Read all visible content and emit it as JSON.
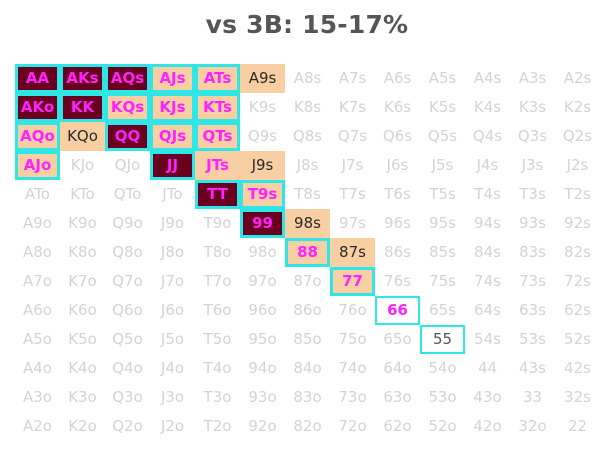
{
  "title": "vs 3B: 15-17%",
  "colors": {
    "raise_fill": "#6a0020",
    "raise_text": "#ff22ff",
    "call_fill": "#f7cfa2",
    "fold_text": "#d3d3d3",
    "highlight_outline": "#2ee6e6"
  },
  "rows": [
    [
      {
        "l": "AA",
        "s": "raise",
        "o": true
      },
      {
        "l": "AKs",
        "s": "raise",
        "o": true
      },
      {
        "l": "AQs",
        "s": "raise",
        "o": true
      },
      {
        "l": "AJs",
        "s": "raise-pink",
        "o": true
      },
      {
        "l": "ATs",
        "s": "raise-pink",
        "o": true
      },
      {
        "l": "A9s",
        "s": "call"
      },
      {
        "l": "A8s",
        "s": "fold"
      },
      {
        "l": "A7s",
        "s": "fold"
      },
      {
        "l": "A6s",
        "s": "fold"
      },
      {
        "l": "A5s",
        "s": "fold"
      },
      {
        "l": "A4s",
        "s": "fold"
      },
      {
        "l": "A3s",
        "s": "fold"
      },
      {
        "l": "A2s",
        "s": "fold"
      }
    ],
    [
      {
        "l": "AKo",
        "s": "raise",
        "o": true
      },
      {
        "l": "KK",
        "s": "raise",
        "o": true
      },
      {
        "l": "KQs",
        "s": "raise-pink",
        "o": true
      },
      {
        "l": "KJs",
        "s": "raise-pink",
        "o": true
      },
      {
        "l": "KTs",
        "s": "raise-pink",
        "o": true
      },
      {
        "l": "K9s",
        "s": "fold"
      },
      {
        "l": "K8s",
        "s": "fold"
      },
      {
        "l": "K7s",
        "s": "fold"
      },
      {
        "l": "K6s",
        "s": "fold"
      },
      {
        "l": "K5s",
        "s": "fold"
      },
      {
        "l": "K4s",
        "s": "fold"
      },
      {
        "l": "K3s",
        "s": "fold"
      },
      {
        "l": "K2s",
        "s": "fold"
      }
    ],
    [
      {
        "l": "AQo",
        "s": "raise-pink",
        "o": true
      },
      {
        "l": "KQo",
        "s": "call"
      },
      {
        "l": "QQ",
        "s": "raise",
        "o": true
      },
      {
        "l": "QJs",
        "s": "raise-pink",
        "o": true
      },
      {
        "l": "QTs",
        "s": "raise-pink",
        "o": true
      },
      {
        "l": "Q9s",
        "s": "fold"
      },
      {
        "l": "Q8s",
        "s": "fold"
      },
      {
        "l": "Q7s",
        "s": "fold"
      },
      {
        "l": "Q6s",
        "s": "fold"
      },
      {
        "l": "Q5s",
        "s": "fold"
      },
      {
        "l": "Q4s",
        "s": "fold"
      },
      {
        "l": "Q3s",
        "s": "fold"
      },
      {
        "l": "Q2s",
        "s": "fold"
      }
    ],
    [
      {
        "l": "AJo",
        "s": "raise-pink",
        "o": true
      },
      {
        "l": "KJo",
        "s": "fold"
      },
      {
        "l": "QJo",
        "s": "fold"
      },
      {
        "l": "JJ",
        "s": "raise",
        "o": true
      },
      {
        "l": "JTs",
        "s": "raise-pink"
      },
      {
        "l": "J9s",
        "s": "call"
      },
      {
        "l": "J8s",
        "s": "fold"
      },
      {
        "l": "J7s",
        "s": "fold"
      },
      {
        "l": "J6s",
        "s": "fold"
      },
      {
        "l": "J5s",
        "s": "fold"
      },
      {
        "l": "J4s",
        "s": "fold"
      },
      {
        "l": "J3s",
        "s": "fold"
      },
      {
        "l": "J2s",
        "s": "fold"
      }
    ],
    [
      {
        "l": "ATo",
        "s": "fold"
      },
      {
        "l": "KTo",
        "s": "fold"
      },
      {
        "l": "QTo",
        "s": "fold"
      },
      {
        "l": "JTo",
        "s": "fold"
      },
      {
        "l": "TT",
        "s": "raise",
        "o": true
      },
      {
        "l": "T9s",
        "s": "raise-pink",
        "o": true
      },
      {
        "l": "T8s",
        "s": "fold"
      },
      {
        "l": "T7s",
        "s": "fold"
      },
      {
        "l": "T6s",
        "s": "fold"
      },
      {
        "l": "T5s",
        "s": "fold"
      },
      {
        "l": "T4s",
        "s": "fold"
      },
      {
        "l": "T3s",
        "s": "fold"
      },
      {
        "l": "T2s",
        "s": "fold"
      }
    ],
    [
      {
        "l": "A9o",
        "s": "fold"
      },
      {
        "l": "K9o",
        "s": "fold"
      },
      {
        "l": "Q9o",
        "s": "fold"
      },
      {
        "l": "J9o",
        "s": "fold"
      },
      {
        "l": "T9o",
        "s": "fold"
      },
      {
        "l": "99",
        "s": "raise",
        "o": true
      },
      {
        "l": "98s",
        "s": "call"
      },
      {
        "l": "97s",
        "s": "fold"
      },
      {
        "l": "96s",
        "s": "fold"
      },
      {
        "l": "95s",
        "s": "fold"
      },
      {
        "l": "94s",
        "s": "fold"
      },
      {
        "l": "93s",
        "s": "fold"
      },
      {
        "l": "92s",
        "s": "fold"
      }
    ],
    [
      {
        "l": "A8o",
        "s": "fold"
      },
      {
        "l": "K8o",
        "s": "fold"
      },
      {
        "l": "Q8o",
        "s": "fold"
      },
      {
        "l": "J8o",
        "s": "fold"
      },
      {
        "l": "T8o",
        "s": "fold"
      },
      {
        "l": "98o",
        "s": "fold"
      },
      {
        "l": "88",
        "s": "raise-pink",
        "o": true
      },
      {
        "l": "87s",
        "s": "call"
      },
      {
        "l": "86s",
        "s": "fold"
      },
      {
        "l": "85s",
        "s": "fold"
      },
      {
        "l": "84s",
        "s": "fold"
      },
      {
        "l": "83s",
        "s": "fold"
      },
      {
        "l": "82s",
        "s": "fold"
      }
    ],
    [
      {
        "l": "A7o",
        "s": "fold"
      },
      {
        "l": "K7o",
        "s": "fold"
      },
      {
        "l": "Q7o",
        "s": "fold"
      },
      {
        "l": "J7o",
        "s": "fold"
      },
      {
        "l": "T7o",
        "s": "fold"
      },
      {
        "l": "97o",
        "s": "fold"
      },
      {
        "l": "87o",
        "s": "fold"
      },
      {
        "l": "77",
        "s": "raise-pink",
        "o": true
      },
      {
        "l": "76s",
        "s": "fold"
      },
      {
        "l": "75s",
        "s": "fold"
      },
      {
        "l": "74s",
        "s": "fold"
      },
      {
        "l": "73s",
        "s": "fold"
      },
      {
        "l": "72s",
        "s": "fold"
      }
    ],
    [
      {
        "l": "A6o",
        "s": "fold"
      },
      {
        "l": "K6o",
        "s": "fold"
      },
      {
        "l": "Q6o",
        "s": "fold"
      },
      {
        "l": "J6o",
        "s": "fold"
      },
      {
        "l": "T6o",
        "s": "fold"
      },
      {
        "l": "96o",
        "s": "fold"
      },
      {
        "l": "86o",
        "s": "fold"
      },
      {
        "l": "76o",
        "s": "fold"
      },
      {
        "l": "66",
        "s": "pink-plain",
        "o": true
      },
      {
        "l": "65s",
        "s": "fold"
      },
      {
        "l": "64s",
        "s": "fold"
      },
      {
        "l": "63s",
        "s": "fold"
      },
      {
        "l": "62s",
        "s": "fold"
      }
    ],
    [
      {
        "l": "A5o",
        "s": "fold"
      },
      {
        "l": "K5o",
        "s": "fold"
      },
      {
        "l": "Q5o",
        "s": "fold"
      },
      {
        "l": "J5o",
        "s": "fold"
      },
      {
        "l": "T5o",
        "s": "fold"
      },
      {
        "l": "95o",
        "s": "fold"
      },
      {
        "l": "85o",
        "s": "fold"
      },
      {
        "l": "75o",
        "s": "fold"
      },
      {
        "l": "65o",
        "s": "fold"
      },
      {
        "l": "55",
        "s": "plain",
        "o": true
      },
      {
        "l": "54s",
        "s": "fold"
      },
      {
        "l": "53s",
        "s": "fold"
      },
      {
        "l": "52s",
        "s": "fold"
      }
    ],
    [
      {
        "l": "A4o",
        "s": "fold"
      },
      {
        "l": "K4o",
        "s": "fold"
      },
      {
        "l": "Q4o",
        "s": "fold"
      },
      {
        "l": "J4o",
        "s": "fold"
      },
      {
        "l": "T4o",
        "s": "fold"
      },
      {
        "l": "94o",
        "s": "fold"
      },
      {
        "l": "84o",
        "s": "fold"
      },
      {
        "l": "74o",
        "s": "fold"
      },
      {
        "l": "64o",
        "s": "fold"
      },
      {
        "l": "54o",
        "s": "fold"
      },
      {
        "l": "44",
        "s": "fold"
      },
      {
        "l": "43s",
        "s": "fold"
      },
      {
        "l": "42s",
        "s": "fold"
      }
    ],
    [
      {
        "l": "A3o",
        "s": "fold"
      },
      {
        "l": "K3o",
        "s": "fold"
      },
      {
        "l": "Q3o",
        "s": "fold"
      },
      {
        "l": "J3o",
        "s": "fold"
      },
      {
        "l": "T3o",
        "s": "fold"
      },
      {
        "l": "93o",
        "s": "fold"
      },
      {
        "l": "83o",
        "s": "fold"
      },
      {
        "l": "73o",
        "s": "fold"
      },
      {
        "l": "63o",
        "s": "fold"
      },
      {
        "l": "53o",
        "s": "fold"
      },
      {
        "l": "43o",
        "s": "fold"
      },
      {
        "l": "33",
        "s": "fold"
      },
      {
        "l": "32s",
        "s": "fold"
      }
    ],
    [
      {
        "l": "A2o",
        "s": "fold"
      },
      {
        "l": "K2o",
        "s": "fold"
      },
      {
        "l": "Q2o",
        "s": "fold"
      },
      {
        "l": "J2o",
        "s": "fold"
      },
      {
        "l": "T2o",
        "s": "fold"
      },
      {
        "l": "92o",
        "s": "fold"
      },
      {
        "l": "82o",
        "s": "fold"
      },
      {
        "l": "72o",
        "s": "fold"
      },
      {
        "l": "62o",
        "s": "fold"
      },
      {
        "l": "52o",
        "s": "fold"
      },
      {
        "l": "42o",
        "s": "fold"
      },
      {
        "l": "32o",
        "s": "fold"
      },
      {
        "l": "22",
        "s": "fold"
      }
    ]
  ]
}
